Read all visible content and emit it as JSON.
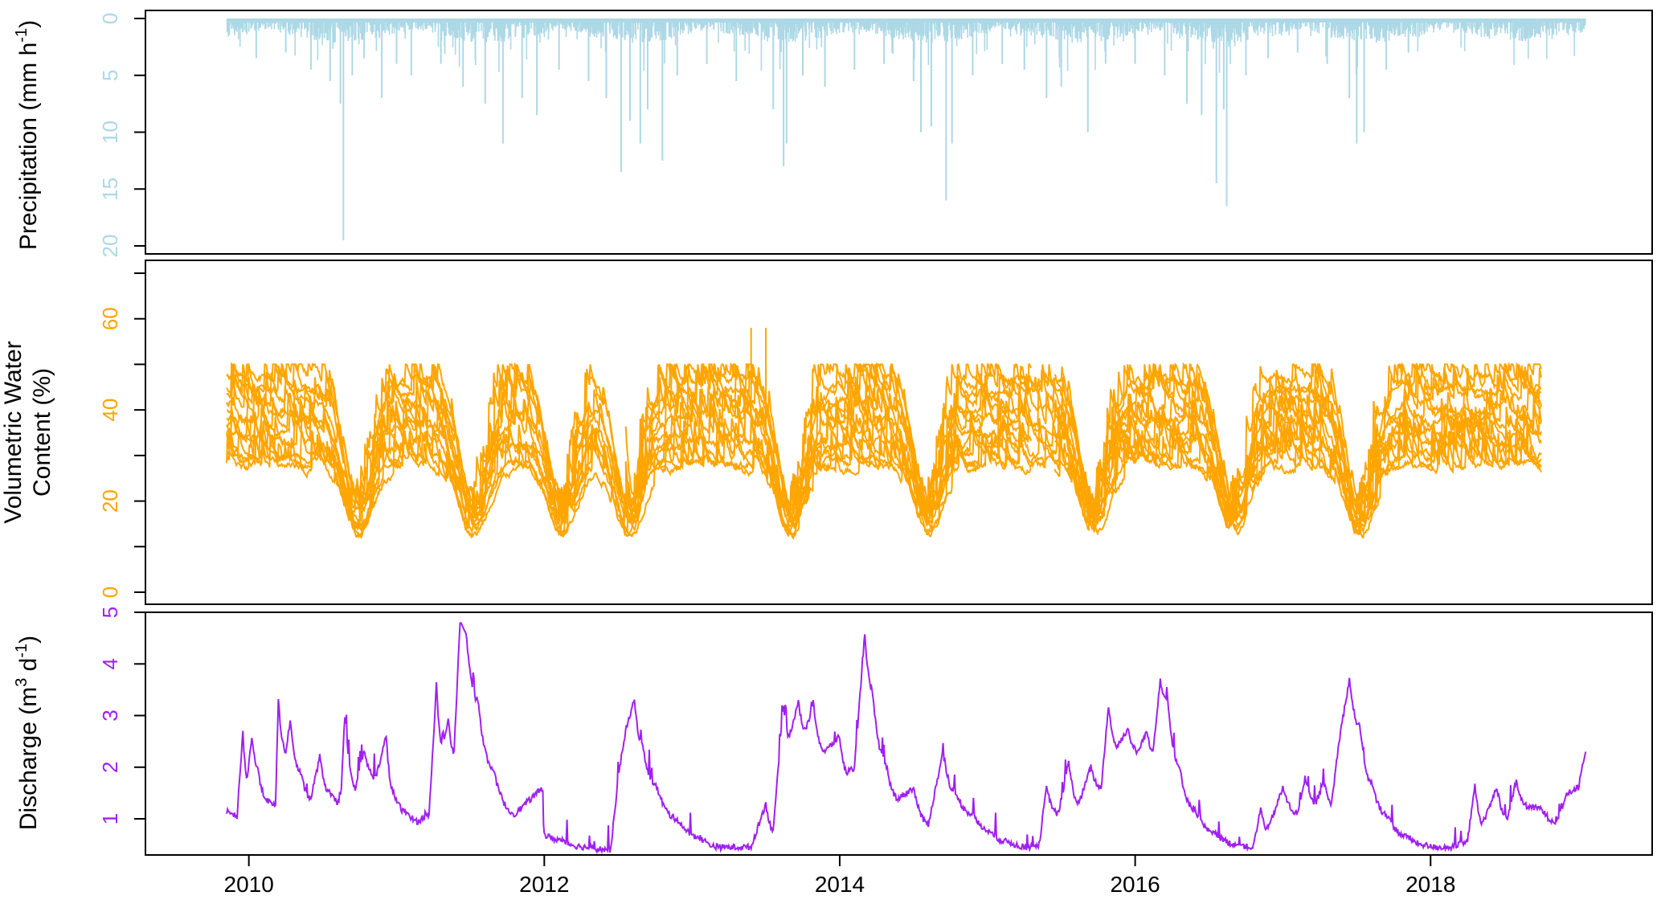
{
  "chart_data": [
    {
      "type": "bar",
      "name": "precipitation-panel",
      "ylabel_main": "Precipitation (mm h",
      "ylabel_sup": "-1",
      "ylabel_tail": ")",
      "color": "#add8e6",
      "y_reversed": true,
      "ylim": [
        0,
        20
      ],
      "yticks": [
        0,
        5,
        10,
        15,
        20
      ],
      "ytick_labels": [
        "0",
        "5",
        "10",
        "15",
        "20"
      ],
      "bar_day_width": 3,
      "base_depth": 1.2,
      "peaks": [
        {
          "t": 2010.05,
          "v": 3.5
        },
        {
          "t": 2010.25,
          "v": 3.0
        },
        {
          "t": 2010.42,
          "v": 4.5
        },
        {
          "t": 2010.55,
          "v": 5.5
        },
        {
          "t": 2010.62,
          "v": 7.5
        },
        {
          "t": 2010.64,
          "v": 19.5
        },
        {
          "t": 2010.7,
          "v": 5.0
        },
        {
          "t": 2010.78,
          "v": 3.5
        },
        {
          "t": 2010.9,
          "v": 7.0
        },
        {
          "t": 2011.0,
          "v": 4.0
        },
        {
          "t": 2011.1,
          "v": 5.0
        },
        {
          "t": 2011.3,
          "v": 4.0
        },
        {
          "t": 2011.45,
          "v": 6.0
        },
        {
          "t": 2011.6,
          "v": 7.5
        },
        {
          "t": 2011.72,
          "v": 11.0
        },
        {
          "t": 2011.85,
          "v": 7.0
        },
        {
          "t": 2011.95,
          "v": 8.5
        },
        {
          "t": 2012.1,
          "v": 4.5
        },
        {
          "t": 2012.3,
          "v": 5.5
        },
        {
          "t": 2012.42,
          "v": 7.0
        },
        {
          "t": 2012.52,
          "v": 13.5
        },
        {
          "t": 2012.58,
          "v": 9.0
        },
        {
          "t": 2012.65,
          "v": 11.0
        },
        {
          "t": 2012.7,
          "v": 8.0
        },
        {
          "t": 2012.8,
          "v": 12.5
        },
        {
          "t": 2012.9,
          "v": 5.0
        },
        {
          "t": 2013.1,
          "v": 4.0
        },
        {
          "t": 2013.3,
          "v": 5.5
        },
        {
          "t": 2013.55,
          "v": 8.0
        },
        {
          "t": 2013.62,
          "v": 13.0
        },
        {
          "t": 2013.64,
          "v": 11.0
        },
        {
          "t": 2013.75,
          "v": 5.0
        },
        {
          "t": 2013.9,
          "v": 6.0
        },
        {
          "t": 2014.1,
          "v": 4.5
        },
        {
          "t": 2014.3,
          "v": 4.0
        },
        {
          "t": 2014.5,
          "v": 5.5
        },
        {
          "t": 2014.55,
          "v": 10.0
        },
        {
          "t": 2014.62,
          "v": 9.5
        },
        {
          "t": 2014.72,
          "v": 16.0
        },
        {
          "t": 2014.76,
          "v": 11.0
        },
        {
          "t": 2014.9,
          "v": 5.0
        },
        {
          "t": 2015.1,
          "v": 4.0
        },
        {
          "t": 2015.25,
          "v": 4.5
        },
        {
          "t": 2015.4,
          "v": 7.0
        },
        {
          "t": 2015.5,
          "v": 6.0
        },
        {
          "t": 2015.68,
          "v": 10.0
        },
        {
          "t": 2015.8,
          "v": 4.0
        },
        {
          "t": 2016.0,
          "v": 4.0
        },
        {
          "t": 2016.2,
          "v": 5.0
        },
        {
          "t": 2016.35,
          "v": 7.5
        },
        {
          "t": 2016.45,
          "v": 8.5
        },
        {
          "t": 2016.55,
          "v": 14.5
        },
        {
          "t": 2016.6,
          "v": 8.0
        },
        {
          "t": 2016.62,
          "v": 16.5
        },
        {
          "t": 2016.75,
          "v": 5.0
        },
        {
          "t": 2016.9,
          "v": 3.5
        },
        {
          "t": 2017.1,
          "v": 3.0
        },
        {
          "t": 2017.3,
          "v": 4.0
        },
        {
          "t": 2017.45,
          "v": 7.0
        },
        {
          "t": 2017.5,
          "v": 11.0
        },
        {
          "t": 2017.55,
          "v": 10.0
        },
        {
          "t": 2017.7,
          "v": 4.5
        },
        {
          "t": 2017.85,
          "v": 3.0
        }
      ]
    },
    {
      "type": "line",
      "name": "vwc-panel",
      "ylabel_line1": "Volumetric Water",
      "ylabel_line2": "Content (%)",
      "color": "#ffa500",
      "ylim": [
        0,
        70
      ],
      "yticks": [
        0,
        10,
        20,
        30,
        40,
        50,
        60,
        70
      ],
      "ytick_labels": [
        "0",
        "",
        "20",
        "",
        "40",
        "",
        "60",
        ""
      ],
      "series_count": 14,
      "sensor_levels": [
        47,
        45,
        44,
        42,
        40,
        38,
        37,
        35,
        33,
        32,
        30,
        29,
        28,
        27
      ],
      "drydowns": [
        {
          "t": 2010.72,
          "min": 16
        },
        {
          "t": 2011.5,
          "min": 16
        },
        {
          "t": 2012.1,
          "min": 17
        },
        {
          "t": 2012.55,
          "min": 11
        },
        {
          "t": 2013.65,
          "min": 12
        },
        {
          "t": 2014.58,
          "min": 15
        },
        {
          "t": 2015.7,
          "min": 12
        },
        {
          "t": 2016.65,
          "min": 12
        },
        {
          "t": 2017.5,
          "min": 12
        }
      ]
    },
    {
      "type": "line",
      "name": "discharge-panel",
      "ylabel_main": "Discharge (m",
      "ylabel_sup1": "3",
      "ylabel_mid": " d",
      "ylabel_sup2": "-1",
      "ylabel_tail": ")",
      "color": "#a020f0",
      "ylim": [
        0.3,
        5.0
      ],
      "yticks": [
        1,
        2,
        3,
        4,
        5
      ],
      "ytick_labels": [
        "1",
        "2",
        "3",
        "4",
        "5"
      ],
      "anchors": [
        [
          2009.85,
          1.15
        ],
        [
          2009.88,
          1.1
        ],
        [
          2009.92,
          1.05
        ],
        [
          2009.96,
          2.7
        ],
        [
          2009.99,
          1.8
        ],
        [
          2010.02,
          2.6
        ],
        [
          2010.06,
          2.0
        ],
        [
          2010.12,
          1.4
        ],
        [
          2010.18,
          1.25
        ],
        [
          2010.2,
          3.3
        ],
        [
          2010.25,
          2.3
        ],
        [
          2010.28,
          2.9
        ],
        [
          2010.35,
          1.9
        ],
        [
          2010.42,
          1.4
        ],
        [
          2010.48,
          2.2
        ],
        [
          2010.55,
          1.5
        ],
        [
          2010.62,
          1.3
        ],
        [
          2010.65,
          3.0
        ],
        [
          2010.72,
          1.6
        ],
        [
          2010.78,
          2.3
        ],
        [
          2010.86,
          1.8
        ],
        [
          2010.93,
          2.6
        ],
        [
          2010.98,
          1.5
        ],
        [
          2011.08,
          1.1
        ],
        [
          2011.15,
          0.95
        ],
        [
          2011.22,
          1.1
        ],
        [
          2011.27,
          3.6
        ],
        [
          2011.31,
          2.4
        ],
        [
          2011.35,
          2.9
        ],
        [
          2011.39,
          2.3
        ],
        [
          2011.43,
          4.85
        ],
        [
          2011.47,
          4.6
        ],
        [
          2011.55,
          3.3
        ],
        [
          2011.65,
          2.0
        ],
        [
          2011.8,
          1.1
        ],
        [
          2012.0,
          0.7
        ],
        [
          2011.99,
          1.6
        ],
        [
          2012.1,
          0.6
        ],
        [
          2012.3,
          0.45
        ],
        [
          2012.45,
          0.4
        ],
        [
          2012.5,
          1.8
        ],
        [
          2012.55,
          2.7
        ],
        [
          2012.61,
          3.3
        ],
        [
          2012.66,
          2.5
        ],
        [
          2012.75,
          1.7
        ],
        [
          2012.9,
          1.0
        ],
        [
          2013.05,
          0.65
        ],
        [
          2013.2,
          0.45
        ],
        [
          2013.4,
          0.45
        ],
        [
          2013.5,
          1.3
        ],
        [
          2013.55,
          0.8
        ],
        [
          2013.62,
          3.2
        ],
        [
          2013.66,
          2.6
        ],
        [
          2013.72,
          3.3
        ],
        [
          2013.77,
          2.7
        ],
        [
          2013.82,
          3.25
        ],
        [
          2013.9,
          2.3
        ],
        [
          2014.0,
          2.6
        ],
        [
          2014.05,
          1.9
        ],
        [
          2014.1,
          2.0
        ],
        [
          2014.17,
          4.6
        ],
        [
          2014.22,
          3.5
        ],
        [
          2014.3,
          2.2
        ],
        [
          2014.4,
          1.4
        ],
        [
          2014.5,
          1.6
        ],
        [
          2014.6,
          0.9
        ],
        [
          2014.7,
          2.3
        ],
        [
          2014.8,
          1.4
        ],
        [
          2014.9,
          1.1
        ],
        [
          2015.0,
          0.8
        ],
        [
          2015.15,
          0.55
        ],
        [
          2015.28,
          0.45
        ],
        [
          2015.35,
          0.5
        ],
        [
          2015.4,
          1.6
        ],
        [
          2015.48,
          1.1
        ],
        [
          2015.55,
          2.1
        ],
        [
          2015.62,
          1.3
        ],
        [
          2015.7,
          2.0
        ],
        [
          2015.77,
          1.6
        ],
        [
          2015.82,
          3.2
        ],
        [
          2015.88,
          2.4
        ],
        [
          2015.95,
          2.75
        ],
        [
          2016.02,
          2.3
        ],
        [
          2016.08,
          2.7
        ],
        [
          2016.12,
          2.3
        ],
        [
          2016.17,
          3.7
        ],
        [
          2016.22,
          3.3
        ],
        [
          2016.3,
          2.0
        ],
        [
          2016.4,
          1.2
        ],
        [
          2016.55,
          0.7
        ],
        [
          2016.7,
          0.5
        ],
        [
          2016.8,
          0.45
        ],
        [
          2016.85,
          1.2
        ],
        [
          2016.9,
          0.8
        ],
        [
          2017.0,
          1.6
        ],
        [
          2017.1,
          1.1
        ],
        [
          2017.15,
          1.8
        ],
        [
          2017.22,
          1.3
        ],
        [
          2017.28,
          1.7
        ],
        [
          2017.33,
          1.3
        ],
        [
          2017.38,
          2.5
        ],
        [
          2017.45,
          3.7
        ],
        [
          2017.52,
          2.8
        ],
        [
          2017.6,
          1.7
        ],
        [
          2017.7,
          1.1
        ],
        [
          2017.85,
          0.65
        ],
        [
          2017.95,
          0.5
        ],
        [
          2018.05,
          0.45
        ],
        [
          2018.15,
          0.45
        ],
        [
          2018.25,
          0.55
        ],
        [
          2018.3,
          1.7
        ],
        [
          2018.35,
          0.9
        ],
        [
          2018.45,
          1.6
        ],
        [
          2018.52,
          1.0
        ],
        [
          2018.58,
          1.75
        ],
        [
          2018.65,
          1.25
        ],
        [
          2018.75,
          1.2
        ],
        [
          2018.85,
          0.95
        ],
        [
          2018.93,
          1.5
        ],
        [
          2019.0,
          1.6
        ],
        [
          2019.05,
          2.3
        ]
      ]
    }
  ],
  "x_axis": {
    "ticks": [
      2010,
      2012,
      2014,
      2016,
      2018
    ],
    "tick_labels": [
      "2010",
      "2012",
      "2014",
      "2016",
      "2018"
    ],
    "xlim": [
      2009.3,
      2019.5
    ]
  }
}
